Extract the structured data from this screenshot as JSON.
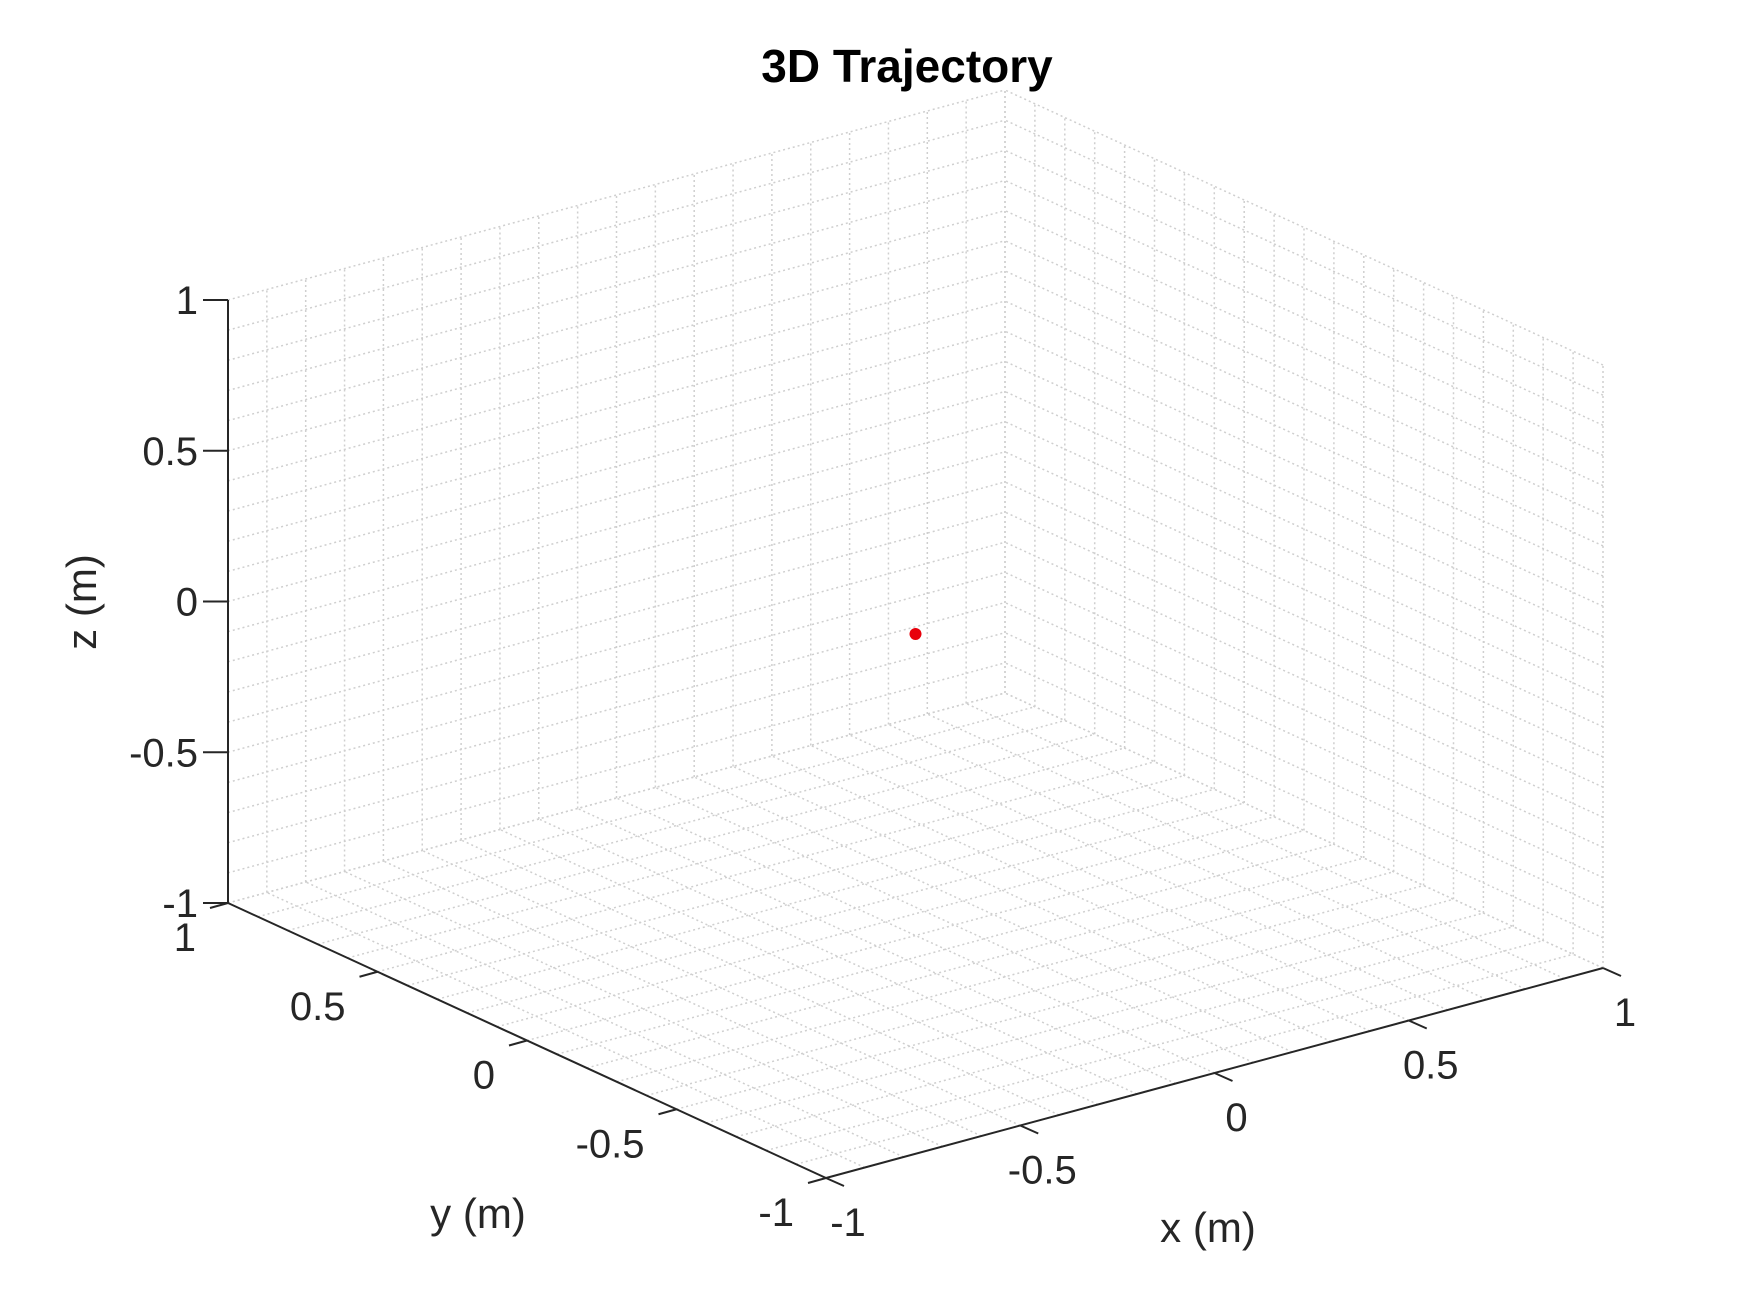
{
  "chart_data": {
    "type": "scatter",
    "projection": "3d",
    "title": "3D Trajectory",
    "xlabel": "x (m)",
    "ylabel": "y (m)",
    "zlabel": "z (m)",
    "xlim": [
      -1,
      1
    ],
    "ylim": [
      -1,
      1
    ],
    "zlim": [
      -1,
      1
    ],
    "xticks": [
      -1,
      -0.5,
      0,
      0.5,
      1
    ],
    "yticks": [
      -1,
      -0.5,
      0,
      0.5,
      1
    ],
    "zticks": [
      -1,
      -0.5,
      0,
      0.5,
      1
    ],
    "xtick_labels": [
      "-1",
      "-0.5",
      "0",
      "0.5",
      "1"
    ],
    "ytick_labels": [
      "-1",
      "-0.5",
      "0",
      "0.5",
      "1"
    ],
    "ztick_labels": [
      "-1",
      "-0.5",
      "0",
      "0.5",
      "1"
    ],
    "grid": true,
    "minor_grid": true,
    "grid_divisions": 20,
    "points": [
      {
        "x": 0,
        "y": 0,
        "z": 0
      }
    ],
    "point_color": "#e8000b",
    "axis_color": "#262626",
    "grid_color": "#cfcfcf"
  }
}
